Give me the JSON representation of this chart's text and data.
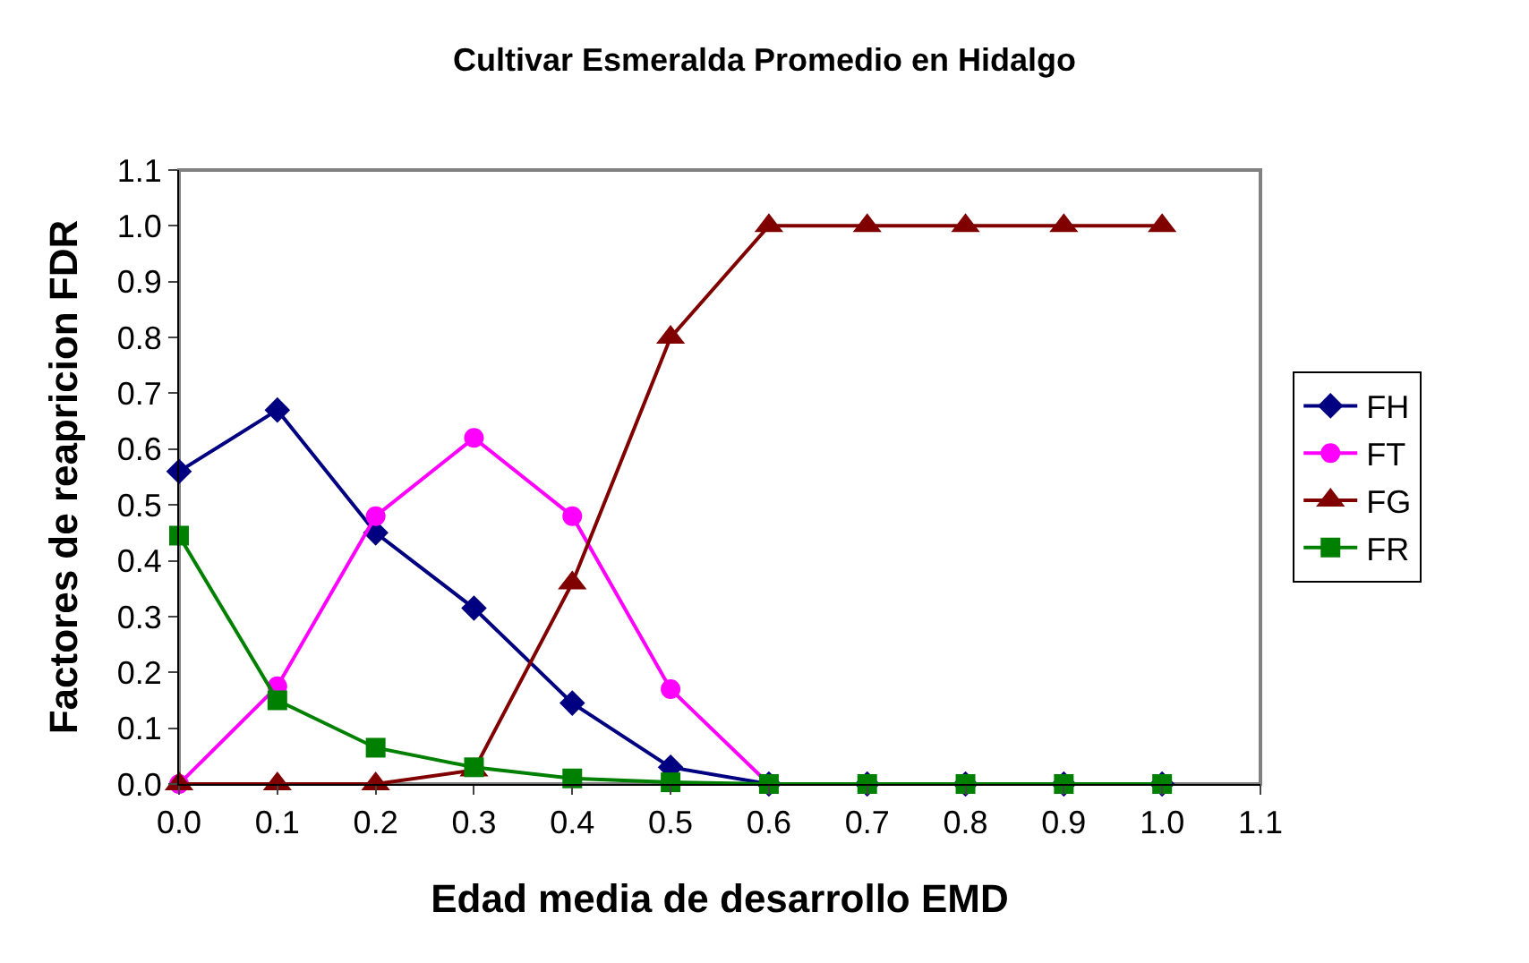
{
  "chart_data": {
    "type": "line",
    "title": "Cultivar Esmeralda Promedio en Hidalgo",
    "xlabel": "Edad media de desarrollo EMD",
    "ylabel": "Factores de reapricion FDR",
    "x": [
      0.0,
      0.1,
      0.2,
      0.3,
      0.4,
      0.5,
      0.6,
      0.7,
      0.8,
      0.9,
      1.0
    ],
    "series": [
      {
        "name": "FH",
        "color": "#000080",
        "marker": "diamond",
        "values": [
          0.56,
          0.67,
          0.45,
          0.315,
          0.145,
          0.03,
          0,
          0,
          0,
          0,
          0
        ]
      },
      {
        "name": "FT",
        "color": "#ff00ff",
        "marker": "circle",
        "values": [
          0,
          0.175,
          0.48,
          0.62,
          0.48,
          0.17,
          0,
          0,
          null,
          null,
          null
        ]
      },
      {
        "name": "FG",
        "color": "#800000",
        "marker": "triangle",
        "values": [
          0,
          0,
          0,
          0.025,
          0.36,
          0.8,
          1.0,
          1.0,
          1.0,
          1.0,
          1.0
        ]
      },
      {
        "name": "FR",
        "color": "#008000",
        "marker": "square",
        "values": [
          0.445,
          0.15,
          0.065,
          0.03,
          0.01,
          0.003,
          0,
          0,
          0,
          0,
          0
        ]
      }
    ],
    "xlim": [
      0,
      1.1
    ],
    "ylim": [
      0,
      1.1
    ],
    "xticks": [
      "0.0",
      0.1,
      0.2,
      0.3,
      0.4,
      0.5,
      0.6,
      0.7,
      0.8,
      0.9,
      "1.0",
      1.1
    ],
    "yticks": [
      "0.0",
      0.1,
      0.2,
      0.3,
      0.4,
      0.5,
      0.6,
      0.7,
      0.8,
      0.9,
      "1.0",
      1.1
    ],
    "grid": false,
    "legend": "right",
    "line_style": "solid"
  }
}
